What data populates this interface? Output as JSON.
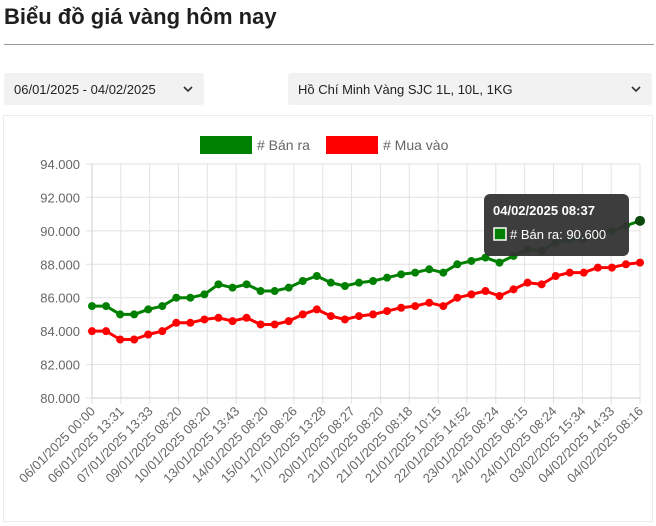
{
  "page": {
    "title": "Biểu đồ giá vàng hôm nay"
  },
  "filters": {
    "date_range": "06/01/2025 - 04/02/2025",
    "location": "Hồ Chí Minh Vàng SJC 1L, 10L, 1KG"
  },
  "icons": {
    "date_dropdown": "chevron-down-icon",
    "location_dropdown": "chevron-down-icon"
  },
  "colors": {
    "sell": "#008000",
    "buy": "#ff0000",
    "tooltip_bg": "#333333"
  },
  "tooltip": {
    "title": "04/02/2025 08:37",
    "label": "# Bán ra: 90.600"
  },
  "chart_data": {
    "type": "line",
    "title": "",
    "xlabel": "",
    "ylabel": "",
    "ylim": [
      80000,
      94000
    ],
    "yticks": [
      "94.000",
      "92.000",
      "90.000",
      "88.000",
      "86.000",
      "84.000",
      "82.000",
      "80.000"
    ],
    "ytick_values": [
      94000,
      92000,
      90000,
      88000,
      86000,
      84000,
      82000,
      80000
    ],
    "legend_position": "top",
    "grid": true,
    "x_tick_labels": [
      "06/01/2025 00:00",
      "06/01/2025 13:31",
      "07/01/2025 13:33",
      "09/01/2025 08:20",
      "10/01/2025 08:20",
      "13/01/2025 13:43",
      "14/01/2025 08:20",
      "15/01/2025 08:26",
      "17/01/2025 13:28",
      "20/01/2025 08:27",
      "21/01/2025 08:20",
      "21/01/2025 08:18",
      "21/01/2025 10:15",
      "22/01/2025 14:52",
      "23/01/2025 08:24",
      "24/01/2025 08:15",
      "24/01/2025 08:24",
      "03/02/2025 15:34",
      "04/02/2025 14:33",
      "04/02/2025 08:16"
    ],
    "series": [
      {
        "name": "# Bán ra",
        "color": "#008000",
        "values": [
          85500,
          85500,
          85000,
          85000,
          85300,
          85500,
          86000,
          86000,
          86200,
          86800,
          86600,
          86800,
          86400,
          86400,
          86600,
          87000,
          87300,
          86900,
          86700,
          86900,
          87000,
          87200,
          87400,
          87500,
          87700,
          87500,
          88000,
          88200,
          88400,
          88100,
          88500,
          88900,
          88800,
          89300,
          89500,
          89500,
          89800,
          90000,
          90300,
          90600
        ]
      },
      {
        "name": "# Mua vào",
        "color": "#ff0000",
        "values": [
          84000,
          84000,
          83500,
          83500,
          83800,
          84000,
          84500,
          84500,
          84700,
          84800,
          84600,
          84800,
          84400,
          84400,
          84600,
          85000,
          85300,
          84900,
          84700,
          84900,
          85000,
          85200,
          85400,
          85500,
          85700,
          85500,
          86000,
          86200,
          86400,
          86100,
          86500,
          86900,
          86800,
          87300,
          87500,
          87500,
          87800,
          87800,
          88000,
          88100
        ]
      }
    ]
  }
}
